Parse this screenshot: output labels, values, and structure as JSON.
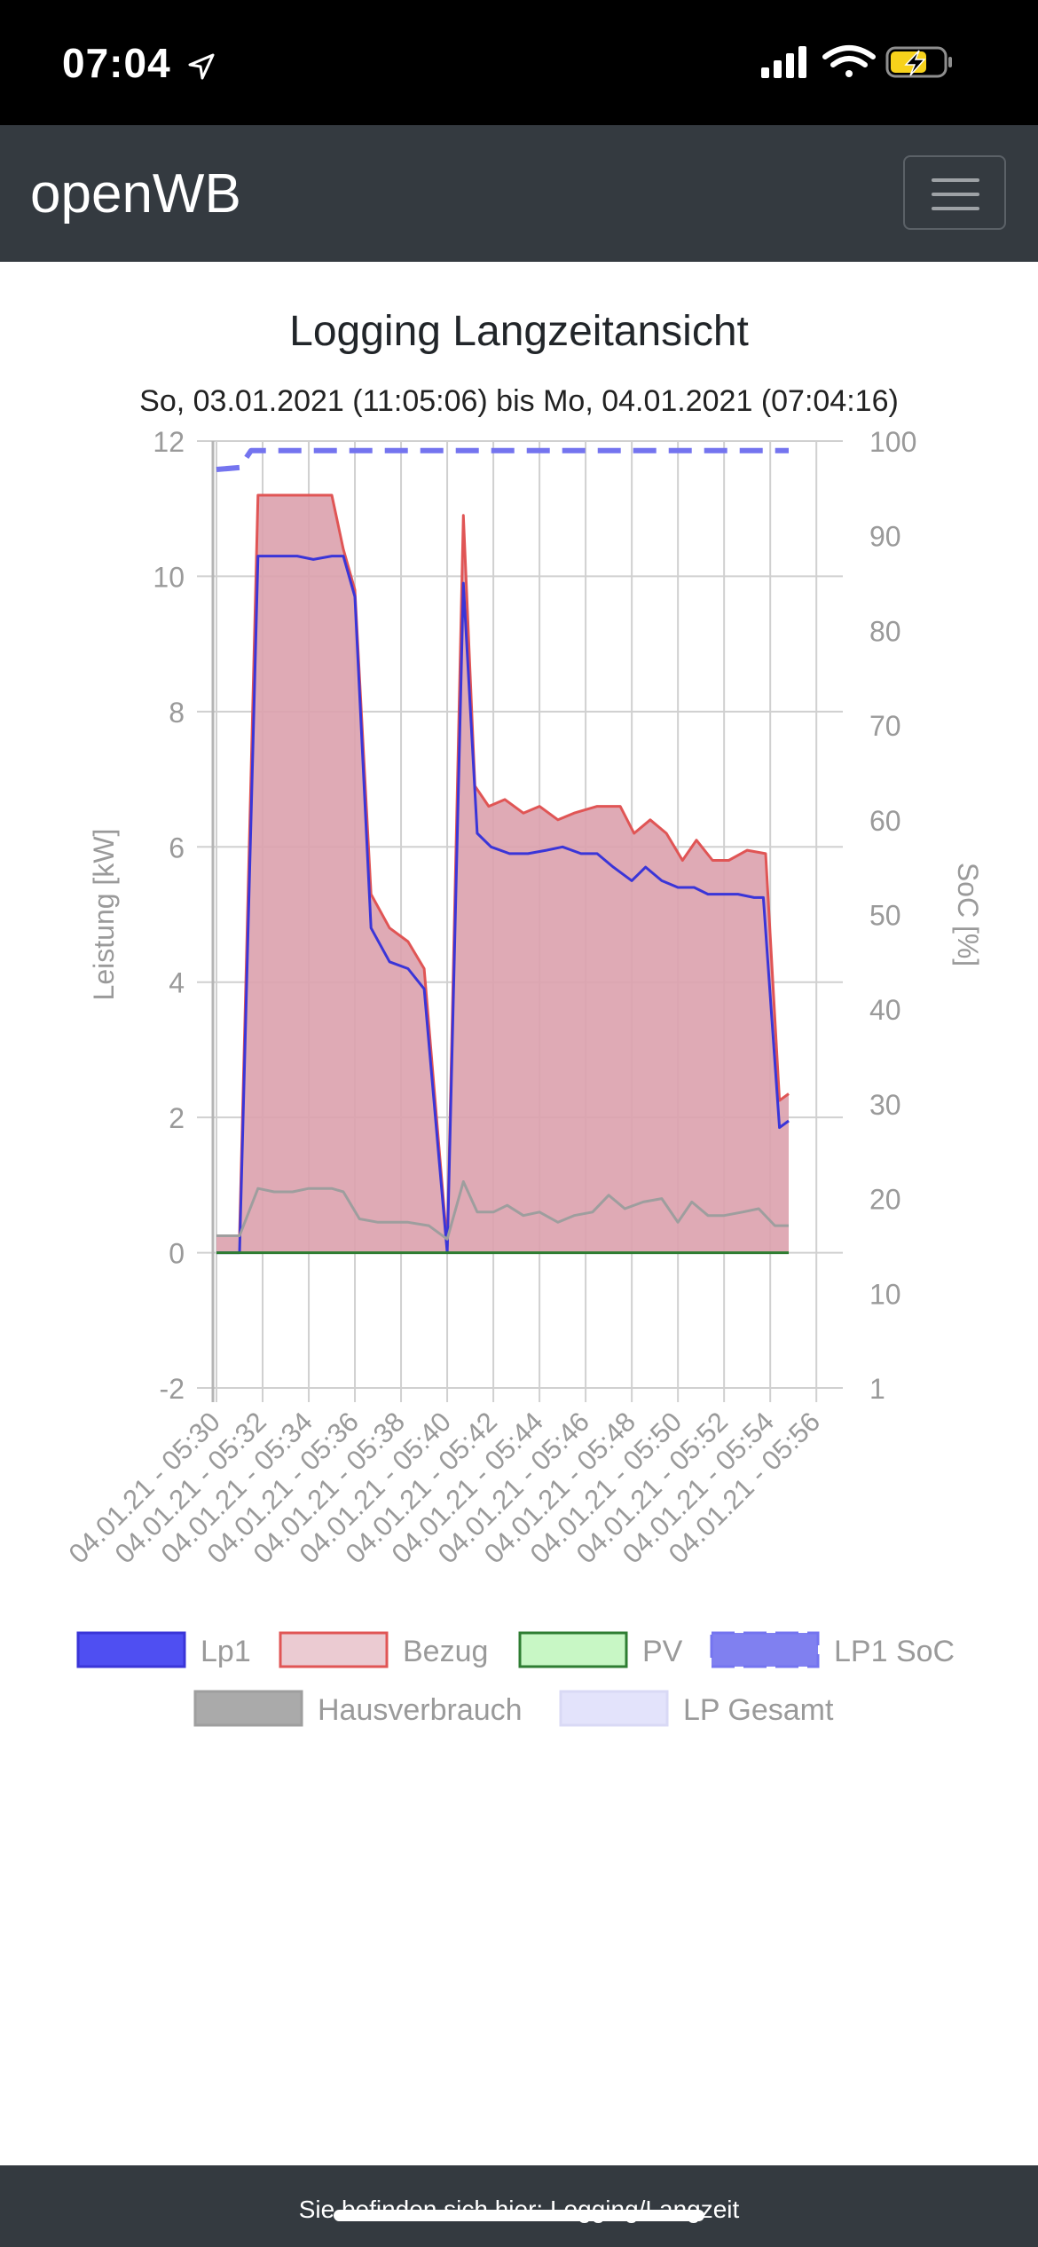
{
  "status_bar": {
    "time": "07:04"
  },
  "navbar": {
    "brand": "openWB"
  },
  "page": {
    "title": "Logging Langzeitansicht"
  },
  "footer": {
    "text": "Sie befinden sich hier: Logging/Langzeit"
  },
  "chart_data": {
    "type": "area",
    "subtitle": "So, 03.01.2021 (11:05:06) bis Mo, 04.01.2021 (07:04:16)",
    "ylabel_left": "Leistung [kW]",
    "ylabel_right": "SoC [%]",
    "ylim_left": [
      -2,
      12
    ],
    "yticks_left": [
      "12",
      "10",
      "8",
      "6",
      "4",
      "2",
      "0",
      "-2"
    ],
    "ylim_right": [
      1,
      100
    ],
    "yticks_right": [
      "100",
      "90",
      "80",
      "70",
      "60",
      "50",
      "40",
      "30",
      "20",
      "10",
      "1"
    ],
    "x_range": [
      0,
      27
    ],
    "xticks": [
      {
        "x": 0,
        "label": "04.01.21 - 05:30"
      },
      {
        "x": 2,
        "label": "04.01.21 - 05:32"
      },
      {
        "x": 4,
        "label": "04.01.21 - 05:34"
      },
      {
        "x": 6,
        "label": "04.01.21 - 05:36"
      },
      {
        "x": 8,
        "label": "04.01.21 - 05:38"
      },
      {
        "x": 10,
        "label": "04.01.21 - 05:40"
      },
      {
        "x": 12,
        "label": "04.01.21 - 05:42"
      },
      {
        "x": 14,
        "label": "04.01.21 - 05:44"
      },
      {
        "x": 16,
        "label": "04.01.21 - 05:46"
      },
      {
        "x": 18,
        "label": "04.01.21 - 05:48"
      },
      {
        "x": 20,
        "label": "04.01.21 - 05:50"
      },
      {
        "x": 22,
        "label": "04.01.21 - 05:52"
      },
      {
        "x": 24,
        "label": "04.01.21 - 05:54"
      },
      {
        "x": 26,
        "label": "04.01.21 - 05:56"
      }
    ],
    "grid": true,
    "legend_position": "bottom",
    "series": [
      {
        "name": "Bezug",
        "axis": "left",
        "fill": true,
        "stroke": "#e05555",
        "fill_color": "#dba1ad",
        "points": [
          [
            0,
            0.25
          ],
          [
            1,
            0.25
          ],
          [
            1.8,
            11.2
          ],
          [
            2.5,
            11.2
          ],
          [
            3.5,
            11.2
          ],
          [
            5,
            11.2
          ],
          [
            5.5,
            10.4
          ],
          [
            6,
            9.8
          ],
          [
            6.7,
            5.3
          ],
          [
            7.5,
            4.8
          ],
          [
            8.3,
            4.6
          ],
          [
            9,
            4.2
          ],
          [
            10,
            0.1
          ],
          [
            10.7,
            10.9
          ],
          [
            11.2,
            6.9
          ],
          [
            11.8,
            6.6
          ],
          [
            12.5,
            6.7
          ],
          [
            13.3,
            6.5
          ],
          [
            14,
            6.6
          ],
          [
            14.8,
            6.4
          ],
          [
            15.5,
            6.5
          ],
          [
            16.5,
            6.6
          ],
          [
            17.5,
            6.6
          ],
          [
            18.1,
            6.2
          ],
          [
            18.8,
            6.4
          ],
          [
            19.5,
            6.2
          ],
          [
            20.2,
            5.8
          ],
          [
            20.8,
            6.1
          ],
          [
            21.5,
            5.8
          ],
          [
            22.2,
            5.8
          ],
          [
            23,
            5.95
          ],
          [
            23.8,
            5.9
          ],
          [
            24.4,
            2.25
          ],
          [
            24.8,
            2.35
          ]
        ]
      },
      {
        "name": "Lp1",
        "axis": "left",
        "fill": false,
        "stroke": "#3a35d8",
        "fill_color": "#4f4ff2",
        "points": [
          [
            0,
            0
          ],
          [
            1,
            0
          ],
          [
            1.8,
            10.3
          ],
          [
            2.5,
            10.3
          ],
          [
            3.5,
            10.3
          ],
          [
            4.2,
            10.25
          ],
          [
            5,
            10.3
          ],
          [
            5.5,
            10.3
          ],
          [
            6,
            9.7
          ],
          [
            6.7,
            4.8
          ],
          [
            7.5,
            4.3
          ],
          [
            8.3,
            4.2
          ],
          [
            9,
            3.9
          ],
          [
            10,
            0
          ],
          [
            10.7,
            9.9
          ],
          [
            11.3,
            6.2
          ],
          [
            11.9,
            6.0
          ],
          [
            12.7,
            5.9
          ],
          [
            13.5,
            5.9
          ],
          [
            14.3,
            5.95
          ],
          [
            15,
            6.0
          ],
          [
            15.8,
            5.9
          ],
          [
            16.5,
            5.9
          ],
          [
            17.2,
            5.7
          ],
          [
            18,
            5.5
          ],
          [
            18.6,
            5.7
          ],
          [
            19.3,
            5.5
          ],
          [
            20,
            5.4
          ],
          [
            20.7,
            5.4
          ],
          [
            21.3,
            5.3
          ],
          [
            22,
            5.3
          ],
          [
            22.6,
            5.3
          ],
          [
            23.3,
            5.25
          ],
          [
            23.7,
            5.25
          ],
          [
            24.4,
            1.85
          ],
          [
            24.8,
            1.95
          ]
        ]
      },
      {
        "name": "Hausverbrauch",
        "axis": "left",
        "fill": false,
        "stroke": "#9e9e9e",
        "fill_color": "#aaaaaa",
        "points": [
          [
            0,
            0.25
          ],
          [
            1,
            0.25
          ],
          [
            1.8,
            0.95
          ],
          [
            2.5,
            0.9
          ],
          [
            3.3,
            0.9
          ],
          [
            4,
            0.95
          ],
          [
            5,
            0.95
          ],
          [
            5.5,
            0.9
          ],
          [
            6.2,
            0.5
          ],
          [
            7,
            0.45
          ],
          [
            8.3,
            0.45
          ],
          [
            9.2,
            0.4
          ],
          [
            10,
            0.2
          ],
          [
            10.7,
            1.05
          ],
          [
            11.3,
            0.6
          ],
          [
            12,
            0.6
          ],
          [
            12.6,
            0.7
          ],
          [
            13.3,
            0.55
          ],
          [
            14,
            0.6
          ],
          [
            14.8,
            0.45
          ],
          [
            15.5,
            0.55
          ],
          [
            16.3,
            0.6
          ],
          [
            17,
            0.85
          ],
          [
            17.7,
            0.65
          ],
          [
            18.5,
            0.75
          ],
          [
            19.3,
            0.8
          ],
          [
            20,
            0.45
          ],
          [
            20.6,
            0.75
          ],
          [
            21.3,
            0.55
          ],
          [
            22,
            0.55
          ],
          [
            22.8,
            0.6
          ],
          [
            23.5,
            0.65
          ],
          [
            24.2,
            0.4
          ],
          [
            24.8,
            0.4
          ]
        ]
      },
      {
        "name": "PV",
        "axis": "left",
        "fill": false,
        "stroke": "#2e7d32",
        "fill_color": "#c8f7c5",
        "points": [
          [
            0,
            0
          ],
          [
            24.8,
            0
          ]
        ]
      },
      {
        "name": "LP1 SoC",
        "axis": "right",
        "fill": false,
        "dashed": true,
        "stroke": "#7474ef",
        "fill_color": "#8080f0",
        "points": [
          [
            0,
            97
          ],
          [
            1,
            97.2
          ],
          [
            1.5,
            99
          ],
          [
            24.8,
            99
          ]
        ]
      },
      {
        "name": "LP Gesamt",
        "axis": "left",
        "fill": false,
        "stroke": "#d9d9f5",
        "fill_color": "#e3e3fb",
        "points": []
      }
    ]
  }
}
